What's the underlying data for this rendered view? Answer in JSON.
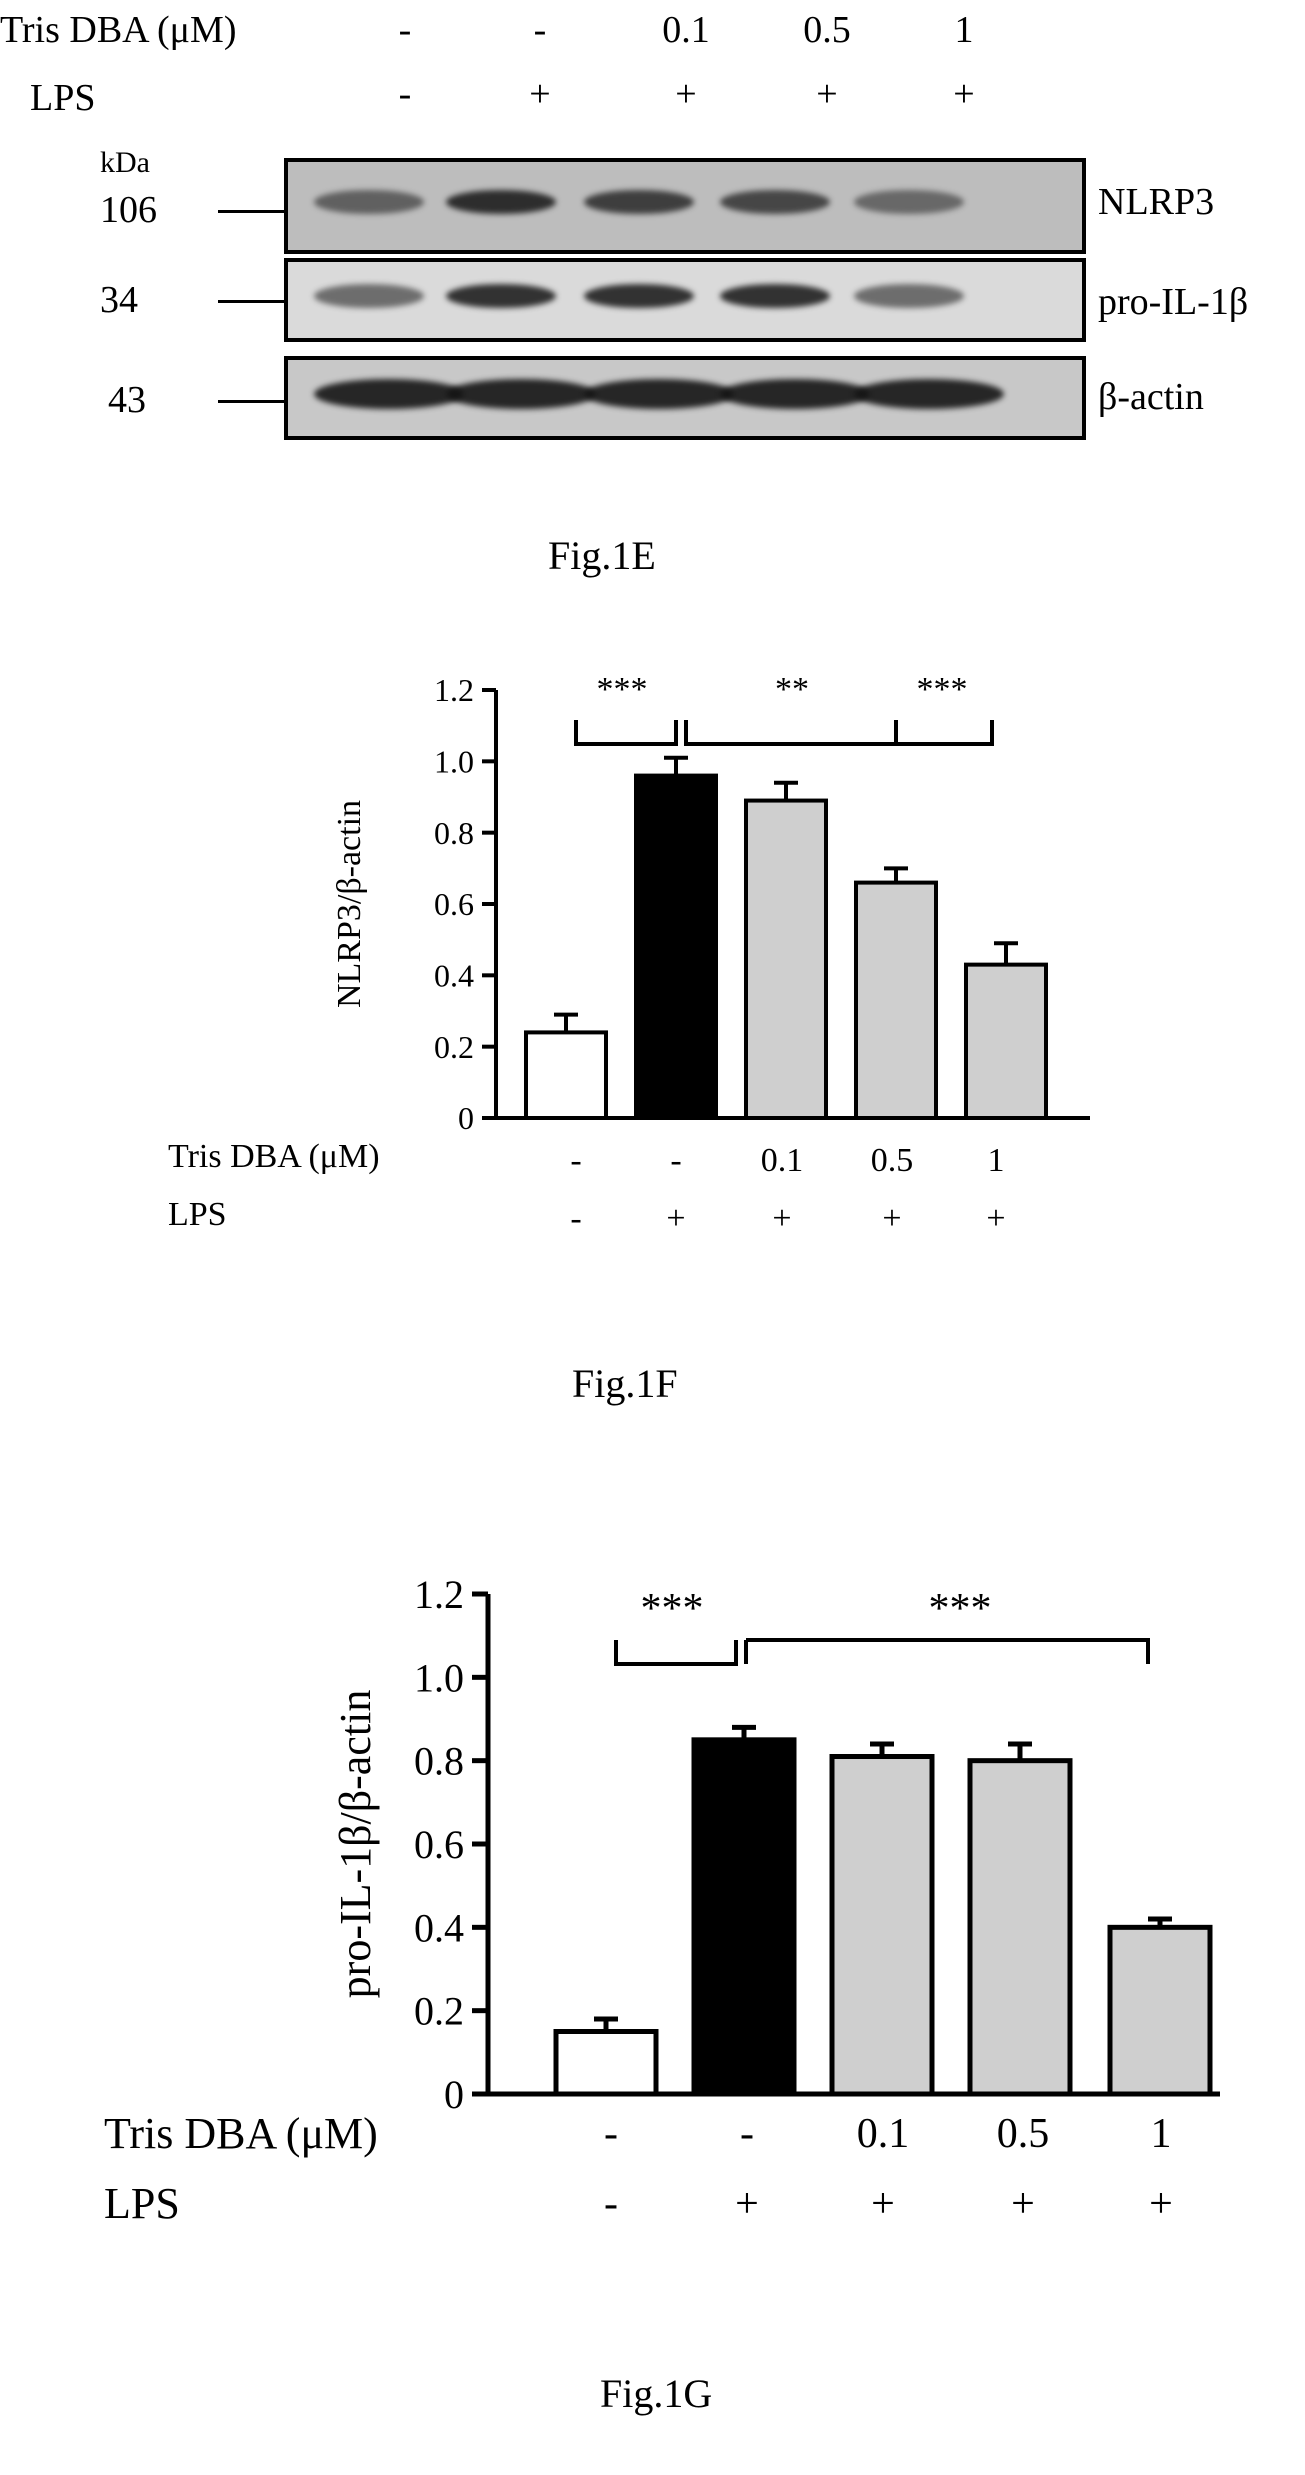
{
  "fig_e": {
    "caption": "Fig.1E",
    "row_labels": {
      "tris": "Tris DBA (μM)",
      "lps": "LPS"
    },
    "tris_values": [
      "-",
      "-",
      "0.1",
      "0.5",
      "1"
    ],
    "lps_values": [
      "-",
      "+",
      "+",
      "+",
      "+"
    ],
    "kda_label": "kDa",
    "bands": [
      {
        "kda": "106",
        "protein": "NLRP3",
        "intensity": [
          0.55,
          0.85,
          0.75,
          0.7,
          0.5
        ]
      },
      {
        "kda": "34",
        "protein": "pro-IL-1β",
        "intensity": [
          0.55,
          0.85,
          0.85,
          0.85,
          0.55
        ]
      },
      {
        "kda": "43",
        "protein": "β-actin",
        "intensity": [
          0.9,
          0.9,
          0.9,
          0.9,
          0.9
        ]
      }
    ]
  },
  "fig_f": {
    "caption": "Fig.1F",
    "row_labels": {
      "tris": "Tris DBA (μM)",
      "lps": "LPS"
    },
    "tris_values": [
      "-",
      "-",
      "0.1",
      "0.5",
      "1"
    ],
    "lps_values": [
      "-",
      "+",
      "+",
      "+",
      "+"
    ],
    "significance": [
      "***",
      "**",
      "***"
    ]
  },
  "fig_g": {
    "caption": "Fig.1G",
    "row_labels": {
      "tris": "Tris DBA (μM)",
      "lps": "LPS"
    },
    "tris_values": [
      "-",
      "-",
      "0.1",
      "0.5",
      "1"
    ],
    "lps_values": [
      "-",
      "+",
      "+",
      "+",
      "+"
    ],
    "significance": [
      "***",
      "***"
    ]
  },
  "chart_data": [
    {
      "type": "bar",
      "ylabel": "NLRP3/β-actin",
      "ylim": [
        0,
        1.2
      ],
      "yticks": [
        "0",
        "0.2",
        "0.4",
        "0.6",
        "0.8",
        "1.0",
        "1.2"
      ],
      "values": [
        0.24,
        0.96,
        0.89,
        0.66,
        0.43
      ],
      "errors": [
        0.05,
        0.05,
        0.05,
        0.04,
        0.06
      ],
      "fills": [
        "#ffffff",
        "#000000",
        "#cfcfcf",
        "#cfcfcf",
        "#cfcfcf"
      ]
    },
    {
      "type": "bar",
      "ylabel": "pro-IL-1β/β-actin",
      "ylim": [
        0,
        1.2
      ],
      "yticks": [
        "0",
        "0.2",
        "0.4",
        "0.6",
        "0.8",
        "1.0",
        "1.2"
      ],
      "values": [
        0.15,
        0.85,
        0.81,
        0.8,
        0.4
      ],
      "errors": [
        0.03,
        0.03,
        0.03,
        0.04,
        0.02
      ],
      "fills": [
        "#ffffff",
        "#000000",
        "#cfcfcf",
        "#cfcfcf",
        "#cfcfcf"
      ]
    }
  ]
}
